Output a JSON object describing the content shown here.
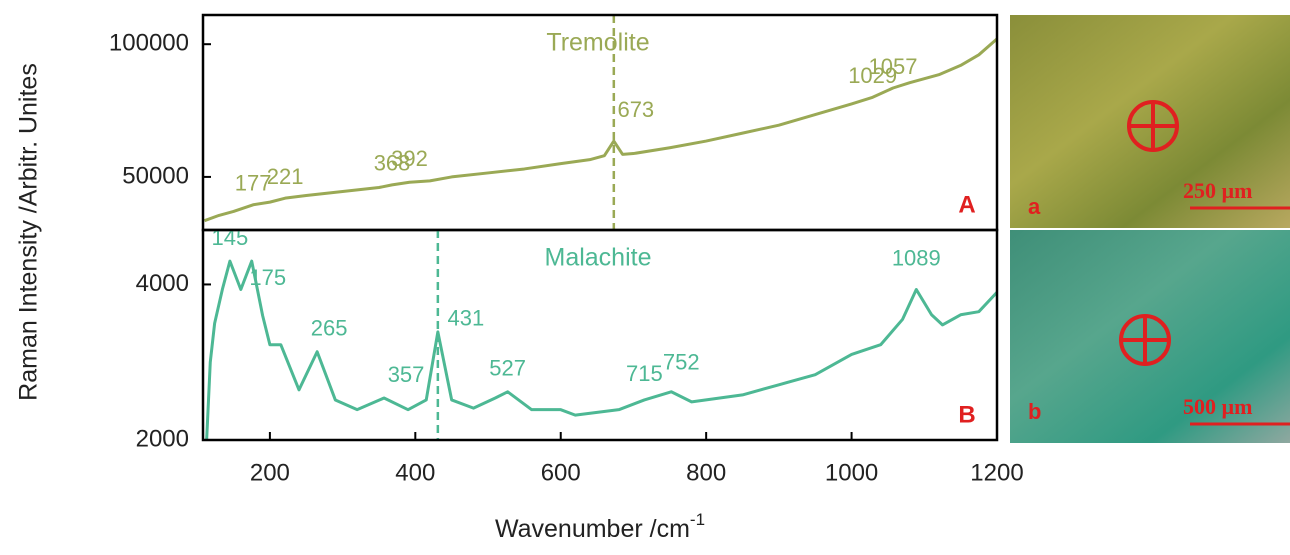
{
  "chart_data": [
    {
      "type": "line",
      "title": "Tremolite",
      "panel_label": "A",
      "color": "#9aa955",
      "y_label": "Raman Intensity /Arbitr. Unites",
      "x": [
        110,
        130,
        150,
        177,
        200,
        221,
        250,
        300,
        350,
        368,
        392,
        420,
        450,
        500,
        550,
        600,
        640,
        660,
        673,
        685,
        700,
        750,
        800,
        850,
        900,
        950,
        1000,
        1029,
        1057,
        1080,
        1100,
        1120,
        1150,
        1175,
        1200
      ],
      "values": [
        33500,
        35500,
        37000,
        39500,
        40500,
        42000,
        43000,
        44500,
        46000,
        47000,
        48000,
        48500,
        50000,
        51500,
        53000,
        55000,
        56500,
        58000,
        63500,
        58500,
        58800,
        61000,
        63500,
        66500,
        69500,
        73500,
        77500,
        80000,
        83500,
        85500,
        87000,
        88500,
        92000,
        96000,
        102000
      ],
      "xlim": [
        108,
        1200
      ],
      "ylim": [
        30000,
        111000
      ],
      "yticks": [
        50000,
        100000
      ],
      "peaks": [
        177,
        221,
        368,
        392,
        673,
        1029,
        1057
      ],
      "marker_line": 673
    },
    {
      "type": "line",
      "title": "Malachite",
      "panel_label": "B",
      "color": "#4db894",
      "x_label": "Wavenumber /cm",
      "x_label_sup": "-1",
      "x": [
        113,
        118,
        124,
        135,
        145,
        160,
        175,
        190,
        200,
        215,
        240,
        265,
        290,
        320,
        357,
        390,
        415,
        431,
        450,
        480,
        510,
        527,
        560,
        600,
        620,
        680,
        715,
        752,
        780,
        850,
        900,
        950,
        1000,
        1040,
        1070,
        1089,
        1110,
        1125,
        1150,
        1175,
        1200
      ],
      "values": [
        2000,
        3000,
        3500,
        3950,
        4300,
        3935,
        4300,
        3600,
        3225,
        3225,
        2645,
        3135,
        2515,
        2390,
        2540,
        2390,
        2515,
        3390,
        2515,
        2410,
        2540,
        2620,
        2390,
        2390,
        2320,
        2390,
        2515,
        2620,
        2490,
        2580,
        2710,
        2840,
        3100,
        3225,
        3550,
        3935,
        3610,
        3480,
        3610,
        3650,
        3900
      ],
      "xlim": [
        108,
        1200
      ],
      "ylim": [
        2000,
        4700
      ],
      "yticks": [
        2000,
        4000
      ],
      "xticks": [
        200,
        400,
        600,
        800,
        1000,
        1200
      ],
      "peaks": [
        145,
        175,
        265,
        357,
        431,
        527,
        715,
        752,
        1089
      ],
      "marker_line": 431
    }
  ],
  "images": [
    {
      "label": "a",
      "scale": "250 µm"
    },
    {
      "label": "b",
      "scale": "500 µm"
    }
  ]
}
